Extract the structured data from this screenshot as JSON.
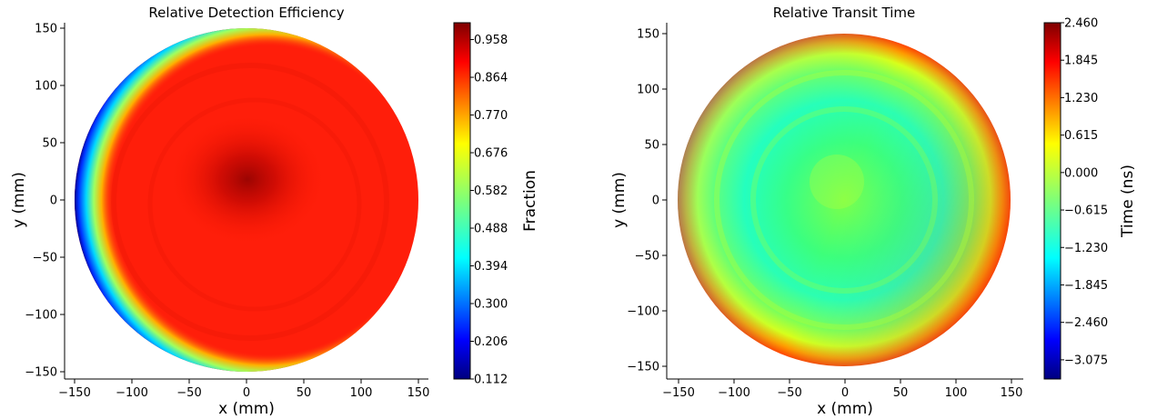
{
  "chart_data": [
    {
      "type": "heatmap",
      "title": "Relative Detection Efficiency",
      "xlabel": "x (mm)",
      "ylabel": "y (mm)",
      "xlim": [
        -163,
        163
      ],
      "ylim": [
        -163,
        163
      ],
      "xticks": [
        -150,
        -100,
        -50,
        0,
        50,
        100,
        150
      ],
      "yticks": [
        150,
        100,
        50,
        0,
        -50,
        -100,
        -150
      ],
      "xtick_labels": [
        "−150",
        "−100",
        "−50",
        "0",
        "50",
        "100",
        "150"
      ],
      "ytick_labels": [
        "150",
        "100",
        "50",
        "0",
        "−50",
        "−100",
        "−150"
      ],
      "radius": 150,
      "colormap": "jet",
      "colorbar": {
        "label": "Fraction",
        "min": 0.112,
        "max": 1.0,
        "ticks": [
          0.958,
          0.864,
          0.77,
          0.676,
          0.582,
          0.488,
          0.394,
          0.3,
          0.206,
          0.112
        ],
        "tick_labels": [
          "0.958",
          "0.864",
          "0.770",
          "0.676",
          "0.582",
          "0.488",
          "0.394",
          "0.300",
          "0.206",
          "0.112"
        ]
      },
      "description_values": {
        "center_value": 0.97,
        "bulk_value": 0.9,
        "left_edge_value": 0.15
      }
    },
    {
      "type": "heatmap",
      "title": "Relative Transit Time",
      "xlabel": "x (mm)",
      "ylabel": "y (mm)",
      "xlim": [
        -163,
        163
      ],
      "ylim": [
        -163,
        163
      ],
      "xticks": [
        -150,
        -100,
        -50,
        0,
        50,
        100,
        150
      ],
      "yticks": [
        150,
        100,
        50,
        0,
        -50,
        -100,
        -150
      ],
      "xtick_labels": [
        "−150",
        "−100",
        "−50",
        "0",
        "50",
        "100",
        "150"
      ],
      "ytick_labels": [
        "150",
        "100",
        "50",
        "0",
        "−50",
        "−100",
        "−150"
      ],
      "radius": 150,
      "colormap": "jet",
      "colorbar": {
        "label": "Time (ns)",
        "min": -3.39,
        "max": 2.46,
        "ticks": [
          2.46,
          1.845,
          1.23,
          0.615,
          0.0,
          -0.615,
          -1.23,
          -1.845,
          -2.46,
          -3.075
        ],
        "tick_labels": [
          "2.460",
          "1.845",
          "1.230",
          "0.615",
          "0.000",
          "−0.615",
          "−1.230",
          "−1.845",
          "−2.460",
          "−3.075"
        ]
      },
      "description_values": {
        "center_value": -0.4,
        "mid_value": -0.7,
        "edge_value": 1.6
      }
    }
  ]
}
